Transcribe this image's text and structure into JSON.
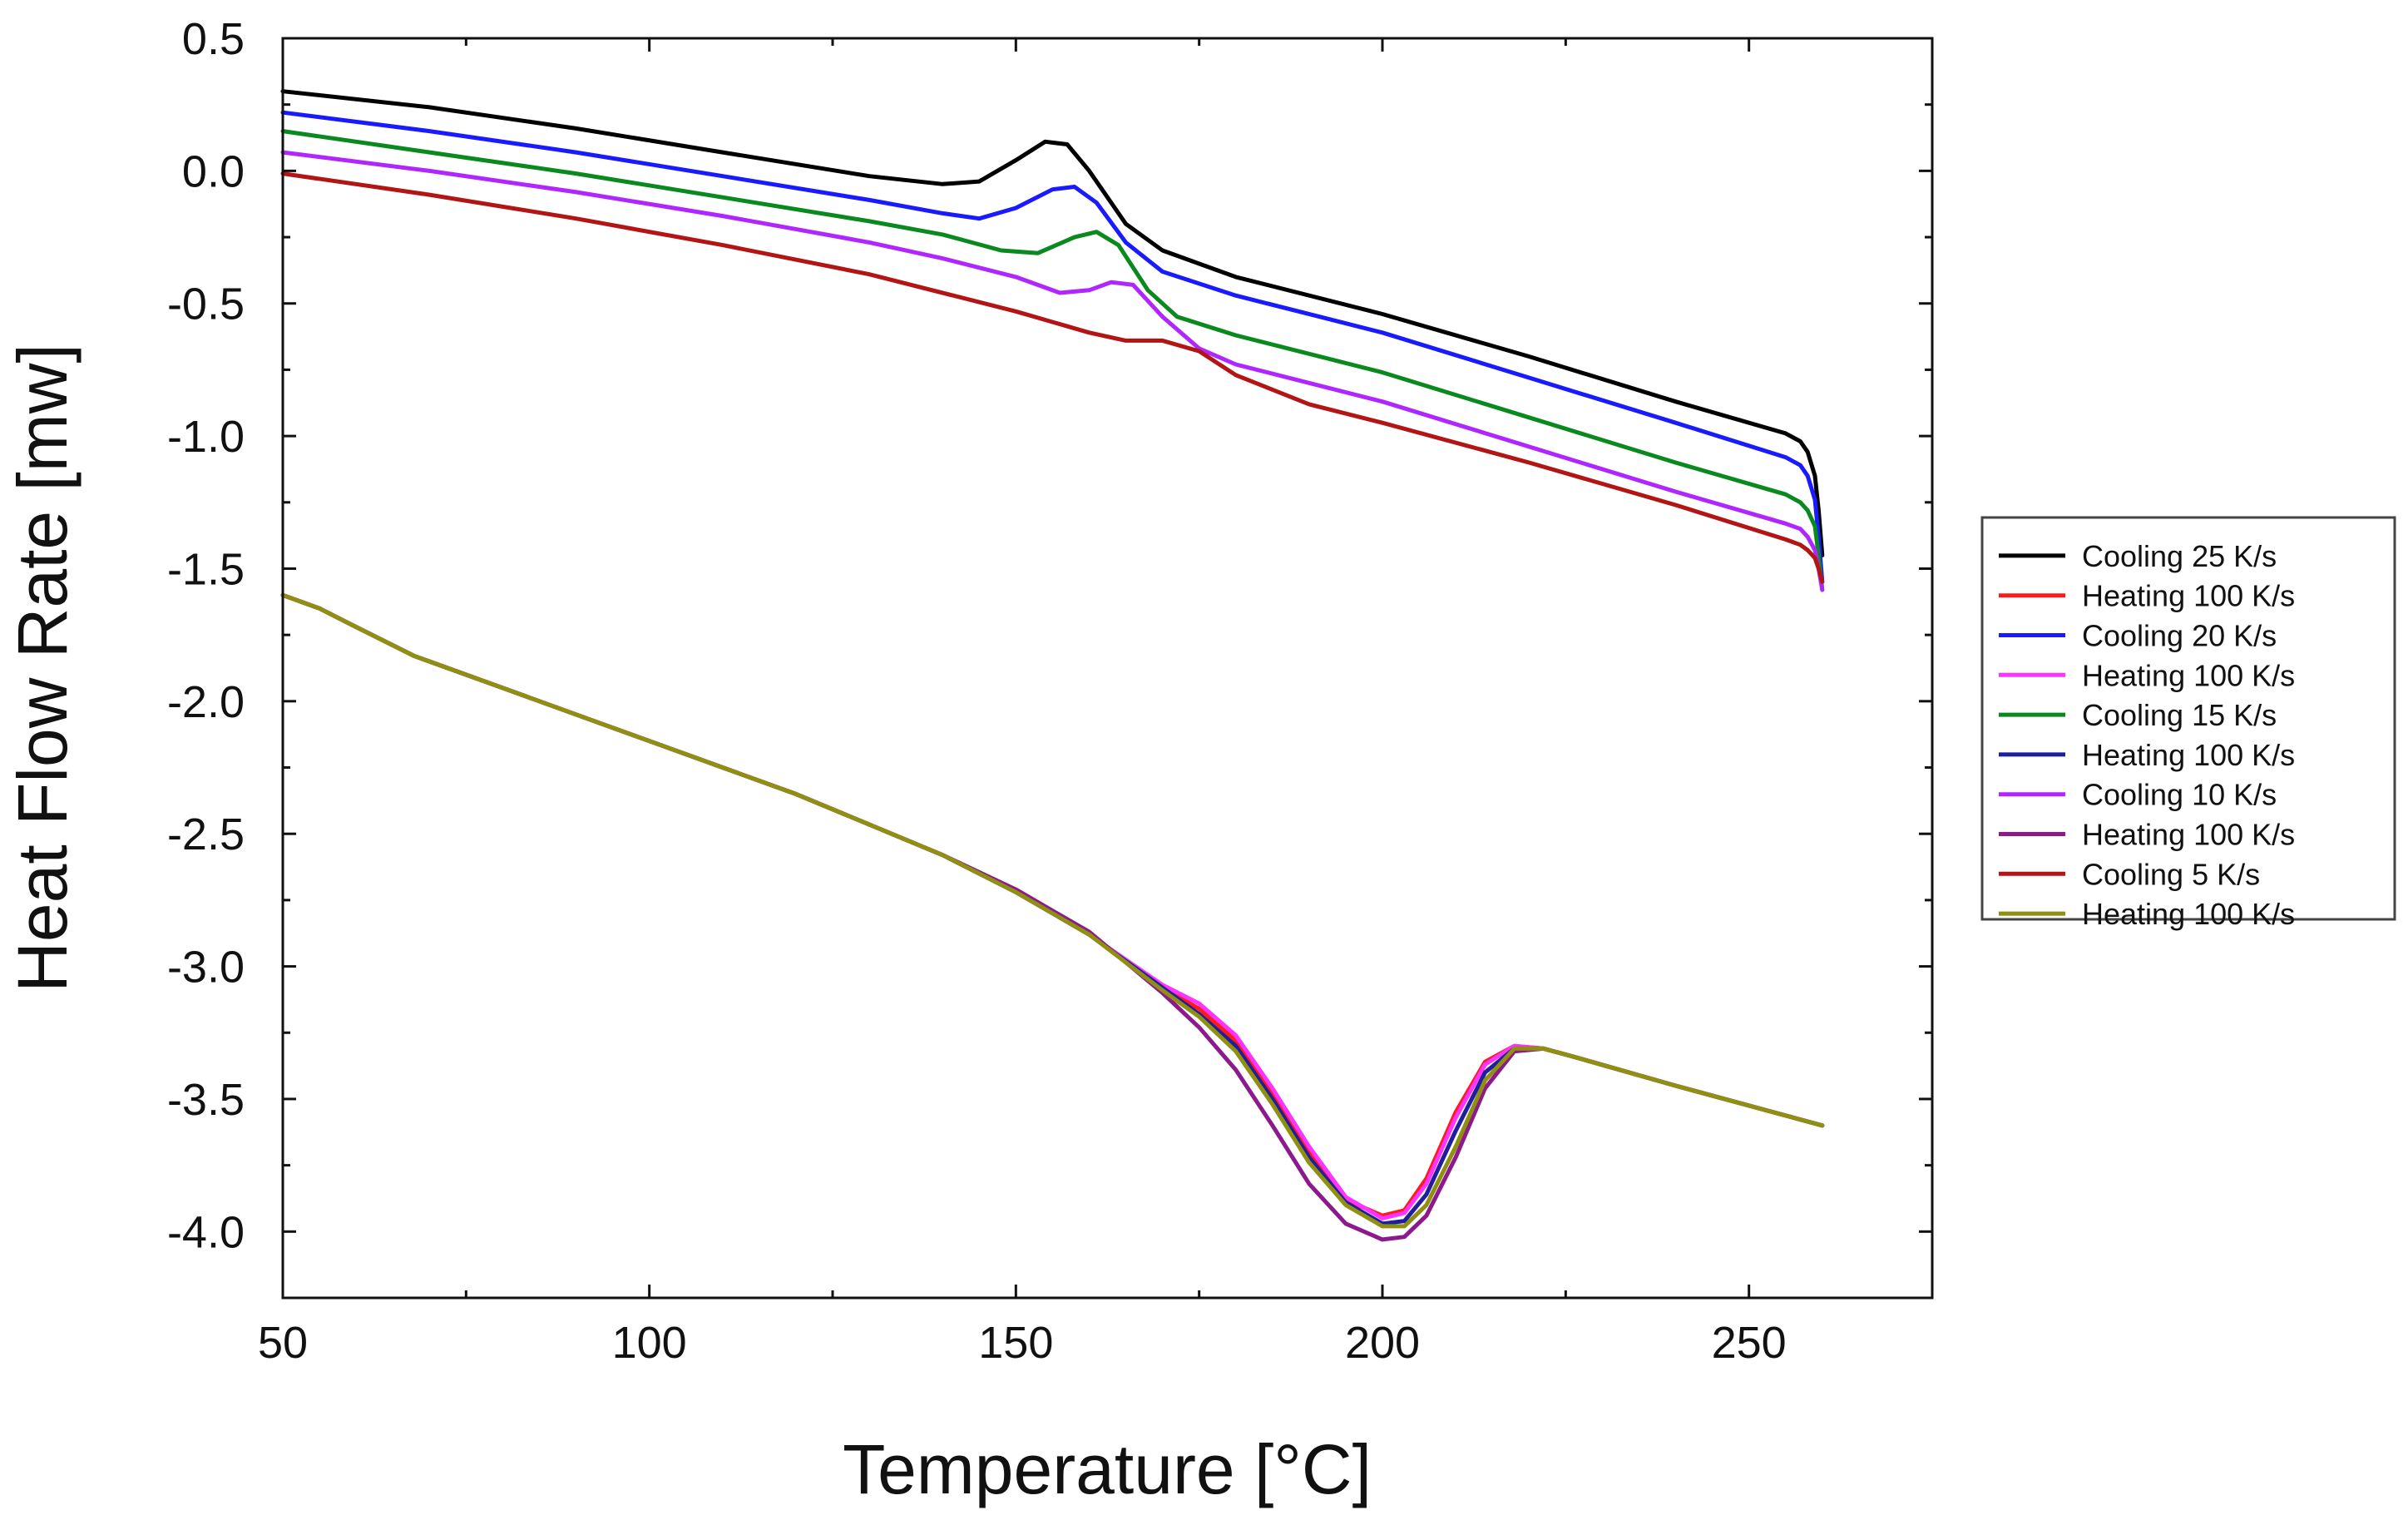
{
  "chart_data": {
    "type": "line",
    "title": "",
    "xlabel": "Temperature [°C]",
    "ylabel": "Heat Flow Rate [mw]",
    "xlim": [
      50,
      275
    ],
    "ylim": [
      -4.25,
      0.5
    ],
    "xticks": [
      50,
      100,
      150,
      200,
      250
    ],
    "xtick_labels": [
      "50",
      "100",
      "150",
      "200",
      "250"
    ],
    "yticks": [
      0.5,
      0.0,
      -0.5,
      -1.0,
      -1.5,
      -2.0,
      -2.5,
      -3.0,
      -3.5,
      -4.0
    ],
    "ytick_labels": [
      "0.5",
      "0.0",
      "-0.5",
      "-1.0",
      "-1.5",
      "-2.0",
      "-2.5",
      "-3.0",
      "-3.5",
      "-4.0"
    ],
    "grid": false,
    "legend_position": "right",
    "series": [
      {
        "name": "Cooling 25 K/s",
        "color": "#000000",
        "x": [
          50,
          70,
          90,
          110,
          130,
          140,
          145,
          150,
          154,
          157,
          160,
          165,
          170,
          180,
          200,
          220,
          240,
          255,
          257,
          258,
          259,
          259.5,
          260
        ],
        "y": [
          0.3,
          0.24,
          0.16,
          0.07,
          -0.02,
          -0.05,
          -0.04,
          0.04,
          0.11,
          0.1,
          0.0,
          -0.2,
          -0.3,
          -0.4,
          -0.54,
          -0.7,
          -0.87,
          -0.99,
          -1.02,
          -1.06,
          -1.15,
          -1.28,
          -1.45
        ]
      },
      {
        "name": "Heating 100 K/s",
        "color": "#ff1a1a",
        "x": [
          50,
          55,
          60,
          68,
          80,
          90,
          100,
          120,
          140,
          150,
          160,
          170,
          175,
          180,
          185,
          190,
          195,
          200,
          203,
          206,
          210,
          214,
          218,
          222,
          226,
          240,
          260
        ],
        "y": [
          -1.6,
          -1.65,
          -1.72,
          -1.83,
          -1.95,
          -2.05,
          -2.15,
          -2.35,
          -2.58,
          -2.72,
          -2.88,
          -3.08,
          -3.16,
          -3.28,
          -3.48,
          -3.7,
          -3.88,
          -3.94,
          -3.92,
          -3.8,
          -3.55,
          -3.36,
          -3.3,
          -3.31,
          -3.34,
          -3.45,
          -3.6
        ]
      },
      {
        "name": "Cooling 20 K/s",
        "color": "#1a1aff",
        "x": [
          50,
          70,
          90,
          110,
          130,
          140,
          145,
          150,
          155,
          158,
          161,
          165,
          170,
          180,
          200,
          220,
          240,
          255,
          257,
          258,
          259,
          259.5,
          260
        ],
        "y": [
          0.22,
          0.15,
          0.07,
          -0.02,
          -0.11,
          -0.16,
          -0.18,
          -0.14,
          -0.07,
          -0.06,
          -0.12,
          -0.27,
          -0.38,
          -0.47,
          -0.61,
          -0.78,
          -0.95,
          -1.08,
          -1.11,
          -1.15,
          -1.24,
          -1.38,
          -1.55
        ]
      },
      {
        "name": "Heating 100 K/s",
        "color": "#ff33ff",
        "x": [
          50,
          55,
          60,
          68,
          80,
          90,
          100,
          120,
          140,
          150,
          160,
          170,
          175,
          180,
          185,
          190,
          195,
          200,
          203,
          206,
          210,
          214,
          218,
          222,
          226,
          240,
          260
        ],
        "y": [
          -1.6,
          -1.65,
          -1.72,
          -1.83,
          -1.95,
          -2.05,
          -2.15,
          -2.35,
          -2.58,
          -2.72,
          -2.88,
          -3.07,
          -3.14,
          -3.26,
          -3.46,
          -3.68,
          -3.87,
          -3.95,
          -3.93,
          -3.82,
          -3.57,
          -3.37,
          -3.3,
          -3.31,
          -3.34,
          -3.45,
          -3.6
        ]
      },
      {
        "name": "Cooling 15 K/s",
        "color": "#0a8a1e",
        "x": [
          50,
          70,
          90,
          110,
          130,
          140,
          148,
          153,
          158,
          161,
          164,
          168,
          172,
          180,
          200,
          220,
          240,
          255,
          257,
          258,
          259,
          259.5,
          260
        ],
        "y": [
          0.15,
          0.07,
          -0.01,
          -0.1,
          -0.19,
          -0.24,
          -0.3,
          -0.31,
          -0.25,
          -0.23,
          -0.28,
          -0.45,
          -0.55,
          -0.62,
          -0.76,
          -0.93,
          -1.1,
          -1.22,
          -1.25,
          -1.28,
          -1.34,
          -1.45,
          -1.58
        ]
      },
      {
        "name": "Heating 100 K/s",
        "color": "#1f1f9e",
        "x": [
          50,
          55,
          60,
          68,
          80,
          90,
          100,
          120,
          140,
          150,
          160,
          170,
          175,
          180,
          185,
          190,
          195,
          200,
          203,
          206,
          210,
          214,
          218,
          222,
          226,
          240,
          260
        ],
        "y": [
          -1.6,
          -1.65,
          -1.72,
          -1.83,
          -1.95,
          -2.05,
          -2.15,
          -2.35,
          -2.58,
          -2.72,
          -2.88,
          -3.08,
          -3.18,
          -3.3,
          -3.5,
          -3.72,
          -3.89,
          -3.97,
          -3.96,
          -3.86,
          -3.62,
          -3.4,
          -3.31,
          -3.31,
          -3.34,
          -3.45,
          -3.6
        ]
      },
      {
        "name": "Cooling 10 K/s",
        "color": "#b026ff",
        "x": [
          50,
          70,
          90,
          110,
          130,
          140,
          150,
          156,
          160,
          163,
          166,
          170,
          175,
          180,
          200,
          220,
          240,
          255,
          257,
          258,
          259,
          259.5,
          260
        ],
        "y": [
          0.07,
          0.0,
          -0.08,
          -0.17,
          -0.27,
          -0.33,
          -0.4,
          -0.46,
          -0.45,
          -0.42,
          -0.43,
          -0.55,
          -0.67,
          -0.73,
          -0.87,
          -1.04,
          -1.21,
          -1.33,
          -1.35,
          -1.38,
          -1.43,
          -1.5,
          -1.58
        ]
      },
      {
        "name": "Heating 100 K/s",
        "color": "#8c1a8c",
        "x": [
          50,
          55,
          60,
          68,
          80,
          90,
          100,
          120,
          140,
          150,
          160,
          170,
          175,
          180,
          185,
          190,
          195,
          200,
          203,
          206,
          210,
          214,
          218,
          222,
          226,
          240,
          260
        ],
        "y": [
          -1.6,
          -1.65,
          -1.72,
          -1.83,
          -1.95,
          -2.05,
          -2.15,
          -2.35,
          -2.58,
          -2.71,
          -2.87,
          -3.1,
          -3.23,
          -3.39,
          -3.6,
          -3.82,
          -3.97,
          -4.03,
          -4.02,
          -3.94,
          -3.72,
          -3.46,
          -3.32,
          -3.31,
          -3.34,
          -3.45,
          -3.6
        ]
      },
      {
        "name": "Cooling 5 K/s",
        "color": "#b31515",
        "x": [
          50,
          70,
          90,
          110,
          130,
          150,
          160,
          165,
          170,
          175,
          180,
          190,
          200,
          220,
          240,
          255,
          257,
          258,
          259,
          259.5,
          260
        ],
        "y": [
          -0.01,
          -0.09,
          -0.18,
          -0.28,
          -0.39,
          -0.53,
          -0.61,
          -0.64,
          -0.64,
          -0.68,
          -0.77,
          -0.88,
          -0.95,
          -1.1,
          -1.26,
          -1.39,
          -1.41,
          -1.43,
          -1.46,
          -1.5,
          -1.55
        ]
      },
      {
        "name": "Heating 100 K/s",
        "color": "#8f8f10",
        "x": [
          50,
          55,
          60,
          68,
          80,
          90,
          100,
          120,
          140,
          150,
          160,
          170,
          175,
          180,
          185,
          190,
          195,
          200,
          203,
          206,
          210,
          214,
          218,
          222,
          226,
          240,
          260
        ],
        "y": [
          -1.6,
          -1.65,
          -1.72,
          -1.83,
          -1.95,
          -2.05,
          -2.15,
          -2.35,
          -2.58,
          -2.72,
          -2.88,
          -3.09,
          -3.19,
          -3.32,
          -3.52,
          -3.74,
          -3.9,
          -3.98,
          -3.98,
          -3.9,
          -3.68,
          -3.43,
          -3.31,
          -3.31,
          -3.34,
          -3.45,
          -3.6
        ]
      }
    ]
  }
}
